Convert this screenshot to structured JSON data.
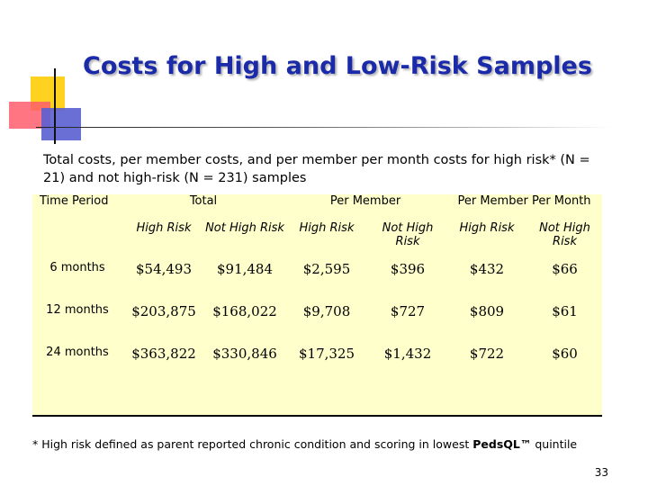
{
  "slide": {
    "title": "Costs for High and Low-Risk Samples",
    "subtitle": "Total costs, per member costs, and per member per month costs for high risk* (N = 21) and not high-risk (N = 231) samples",
    "page_number": "33"
  },
  "table": {
    "col_time_period": "Time Period",
    "groups": [
      "Total",
      "Per Member",
      "Per Member Per Month"
    ],
    "subheaders": [
      "High Risk",
      "Not High Risk",
      "High Risk",
      "Not High Risk",
      "High Risk",
      "Not High Risk"
    ],
    "rows": [
      {
        "period": "6 months",
        "values": [
          "$54,493",
          "$91,484",
          "$2,595",
          "$396",
          "$432",
          "$66"
        ]
      },
      {
        "period": "12 months",
        "values": [
          "$203,875",
          "$168,022",
          "$9,708",
          "$727",
          "$809",
          "$61"
        ]
      },
      {
        "period": "24 months",
        "values": [
          "$363,822",
          "$330,846",
          "$17,325",
          "$1,432",
          "$722",
          "$60"
        ]
      }
    ]
  },
  "footnote": {
    "text": "* High risk defined as parent reported chronic condition and scoring in lowest ",
    "emphasis": "PedsQL™",
    "tail": " quintile"
  },
  "colors": {
    "title": "#1a2aa8",
    "table_background": "#ffffcc",
    "deco_yellow": "#ffd21f",
    "deco_red": "#ff5e6c",
    "deco_blue": "#5a5fd2"
  }
}
